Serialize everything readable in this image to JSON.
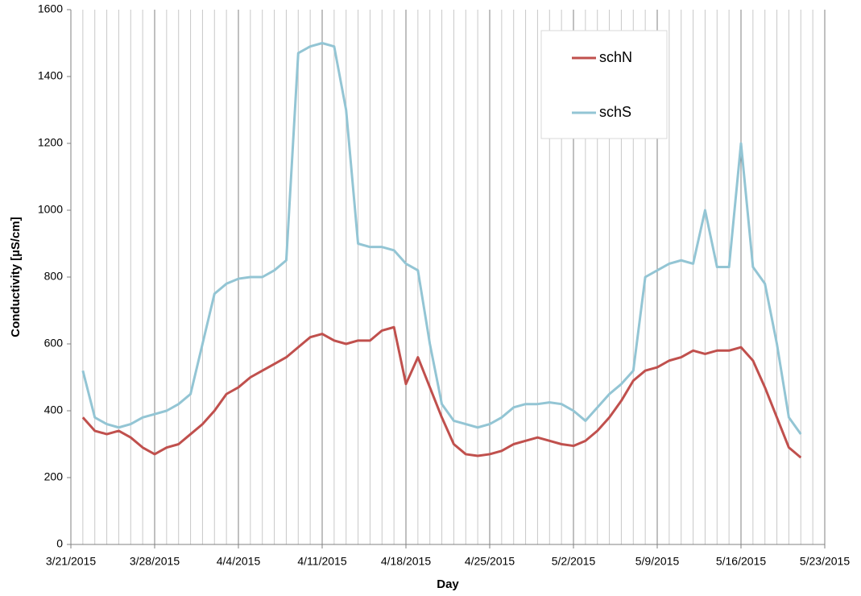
{
  "chart_data": {
    "type": "line",
    "xlabel": "Day",
    "ylabel": "Conductivity [µS/cm]",
    "x": [
      "3/22/2015",
      "3/23/2015",
      "3/24/2015",
      "3/25/2015",
      "3/26/2015",
      "3/27/2015",
      "3/28/2015",
      "3/29/2015",
      "3/30/2015",
      "3/31/2015",
      "4/1/2015",
      "4/2/2015",
      "4/3/2015",
      "4/4/2015",
      "4/5/2015",
      "4/6/2015",
      "4/7/2015",
      "4/8/2015",
      "4/9/2015",
      "4/10/2015",
      "4/11/2015",
      "4/12/2015",
      "4/13/2015",
      "4/14/2015",
      "4/15/2015",
      "4/16/2015",
      "4/17/2015",
      "4/18/2015",
      "4/19/2015",
      "4/20/2015",
      "4/21/2015",
      "4/22/2015",
      "4/23/2015",
      "4/24/2015",
      "4/25/2015",
      "4/26/2015",
      "4/27/2015",
      "4/28/2015",
      "4/29/2015",
      "4/30/2015",
      "5/1/2015",
      "5/2/2015",
      "5/3/2015",
      "5/4/2015",
      "5/5/2015",
      "5/6/2015",
      "5/7/2015",
      "5/8/2015",
      "5/9/2015",
      "5/10/2015",
      "5/11/2015",
      "5/12/2015",
      "5/13/2015",
      "5/14/2015",
      "5/15/2015",
      "5/16/2015",
      "5/17/2015",
      "5/18/2015",
      "5/19/2015",
      "5/20/2015",
      "5/21/2015"
    ],
    "series": [
      {
        "name": "schN",
        "color": "#c0504d",
        "values": [
          380,
          340,
          330,
          340,
          320,
          290,
          270,
          290,
          300,
          330,
          360,
          400,
          450,
          470,
          500,
          520,
          540,
          560,
          590,
          620,
          630,
          610,
          600,
          610,
          610,
          640,
          650,
          480,
          560,
          470,
          380,
          300,
          270,
          265,
          270,
          280,
          300,
          310,
          320,
          310,
          300,
          295,
          310,
          340,
          380,
          430,
          490,
          520,
          530,
          550,
          560,
          580,
          570,
          580,
          580,
          590,
          550,
          470,
          380,
          290,
          260
        ]
      },
      {
        "name": "schS",
        "color": "#93c5d4",
        "values": [
          520,
          380,
          360,
          350,
          360,
          380,
          390,
          400,
          420,
          450,
          600,
          750,
          780,
          795,
          800,
          800,
          820,
          850,
          1470,
          1490,
          1500,
          1490,
          1300,
          900,
          890,
          890,
          880,
          840,
          820,
          600,
          420,
          370,
          360,
          350,
          360,
          380,
          410,
          420,
          420,
          425,
          420,
          400,
          370,
          410,
          450,
          480,
          520,
          800,
          820,
          840,
          850,
          840,
          1000,
          830,
          830,
          1200,
          830,
          780,
          600,
          380,
          330
        ]
      }
    ],
    "xlim": [
      "3/21/2015",
      "5/23/2015"
    ],
    "xticks": [
      "3/21/2015",
      "3/28/2015",
      "4/4/2015",
      "4/11/2015",
      "4/18/2015",
      "4/25/2015",
      "5/2/2015",
      "5/9/2015",
      "5/16/2015",
      "5/23/2015"
    ],
    "ylim": [
      0,
      1600
    ],
    "yticks": [
      0,
      200,
      400,
      600,
      800,
      1000,
      1200,
      1400,
      1600
    ],
    "grid": true,
    "minor_grid": true,
    "legend": "upper right"
  }
}
